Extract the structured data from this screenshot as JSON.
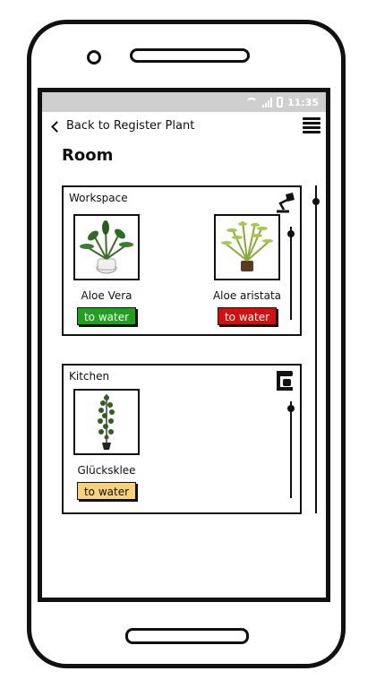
{
  "status_bar": {
    "time": "11:35",
    "bg_color": "#cfcfcf"
  },
  "nav": {
    "back_label": "Back to Register Plant"
  },
  "page": {
    "title": "Room"
  },
  "rooms": [
    {
      "label": "Workspace",
      "icon": "desk-lamp-icon",
      "plants": [
        {
          "name": "Aloe Vera",
          "button": "to water",
          "button_color": "#1fa01f"
        },
        {
          "name": "Aloe aristata",
          "button": "to water",
          "button_color": "#d40f0f"
        }
      ]
    },
    {
      "label": "Kitchen",
      "icon": "coffee-machine-icon",
      "plants": [
        {
          "name": "Glücksklee",
          "button": "to water",
          "button_color": "#f7d27a"
        }
      ]
    }
  ]
}
